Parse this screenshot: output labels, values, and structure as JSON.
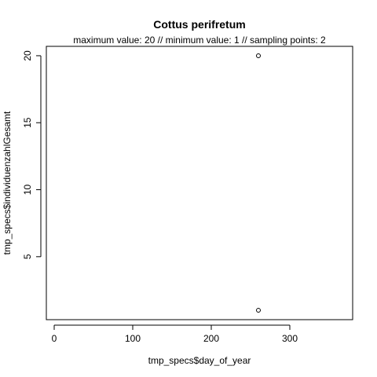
{
  "chart_data": {
    "type": "scatter",
    "title": "Cottus perifretum",
    "subtitle": "maximum value: 20  //  minimum value: 1  // sampling points: 2",
    "xlabel": "tmp_specs$day_of_year",
    "ylabel": "tmp_specs$individuenzahlGesamt",
    "xlim": [
      -10,
      380
    ],
    "ylim": [
      0.3,
      20.7
    ],
    "x_ticks": [
      0,
      100,
      200,
      300
    ],
    "y_ticks": [
      5,
      10,
      15,
      20
    ],
    "grid": false,
    "legend": "none",
    "marker": "open-circle",
    "points": [
      {
        "x": 260,
        "y": 20
      },
      {
        "x": 260,
        "y": 1
      }
    ]
  }
}
